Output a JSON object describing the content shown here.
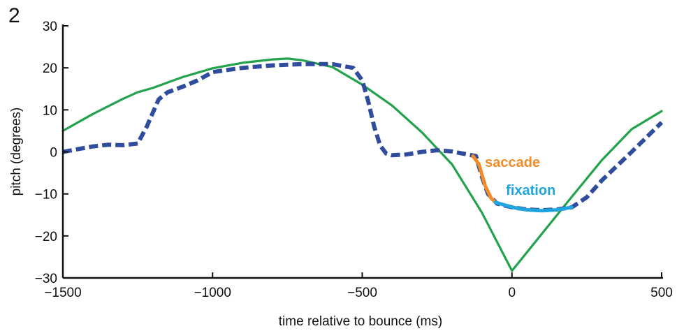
{
  "panel_label": "2",
  "colors": {
    "ball": "#22a24a",
    "gaze": "#2f4d9c",
    "saccade": "#f28c28",
    "fixation": "#1fa6df",
    "axis": "#111111"
  },
  "chart_data": {
    "type": "line",
    "title": "",
    "xlabel": "time relative to bounce (ms)",
    "ylabel": "pitch (degrees)",
    "xlim": [
      -1500,
      500
    ],
    "ylim": [
      -30,
      30
    ],
    "xticks": [
      -1500,
      -1000,
      -500,
      0,
      500
    ],
    "yticks": [
      -30,
      -20,
      -10,
      0,
      10,
      20,
      30
    ],
    "xtick_labels": [
      "−1500",
      "−1000",
      "−500",
      "0",
      "500"
    ],
    "ytick_labels": [
      "−30",
      "−20",
      "−10",
      "0",
      "10",
      "20",
      "30"
    ],
    "grid": false,
    "series": [
      {
        "style": "solid",
        "color": "#22a24a",
        "x": [
          -1500,
          -1400,
          -1300,
          -1250,
          -1200,
          -1100,
          -1000,
          -900,
          -800,
          -750,
          -700,
          -600,
          -500,
          -400,
          -300,
          -200,
          -100,
          0,
          100,
          200,
          300,
          400,
          500
        ],
        "y": [
          5,
          9,
          12.6,
          14.2,
          15.2,
          17.8,
          19.9,
          21.2,
          22,
          22.2,
          21.8,
          20.2,
          16,
          11,
          4.6,
          -3,
          -14.5,
          -28.3,
          -19.5,
          -10.7,
          -2,
          5.4,
          9.7
        ]
      },
      {
        "style": "dashed",
        "color": "#2f4d9c",
        "x": [
          -1500,
          -1400,
          -1350,
          -1300,
          -1250,
          -1220,
          -1180,
          -1150,
          -1100,
          -1050,
          -1000,
          -900,
          -800,
          -700,
          -600,
          -530,
          -500,
          -480,
          -460,
          -440,
          -420,
          -400,
          -350,
          -300,
          -250,
          -200,
          -150,
          -120,
          -100,
          -80,
          -50,
          0,
          50,
          100,
          150,
          200,
          250,
          300,
          400,
          500
        ],
        "y": [
          0,
          1.3,
          1.7,
          1.6,
          2,
          6,
          12.5,
          14.2,
          15.5,
          17,
          19,
          20,
          20.6,
          20.9,
          20.9,
          20,
          17,
          12,
          6,
          1.5,
          -0.4,
          -0.8,
          -0.6,
          0,
          0.4,
          0.1,
          -0.6,
          -1,
          -6,
          -10,
          -12.3,
          -13.2,
          -13.7,
          -13.9,
          -13.7,
          -13.2,
          -10.8,
          -6.8,
          0,
          7
        ]
      },
      {
        "style": "solid",
        "color": "#f28c28",
        "x": [
          -130,
          -110,
          -90,
          -70,
          -55
        ],
        "y": [
          -1,
          -3,
          -8,
          -11,
          -12
        ]
      },
      {
        "style": "solid",
        "color": "#1fa6df",
        "x": [
          -55,
          0,
          50,
          100,
          150,
          200
        ],
        "y": [
          -12,
          -13.2,
          -13.8,
          -14,
          -13.8,
          -13.2
        ]
      }
    ],
    "annotations": [
      {
        "text": "saccade",
        "x": -90,
        "y": -3.6,
        "color": "#f28c28"
      },
      {
        "text": "fixation",
        "x": -20,
        "y": -10.2,
        "color": "#1fa6df"
      }
    ]
  }
}
